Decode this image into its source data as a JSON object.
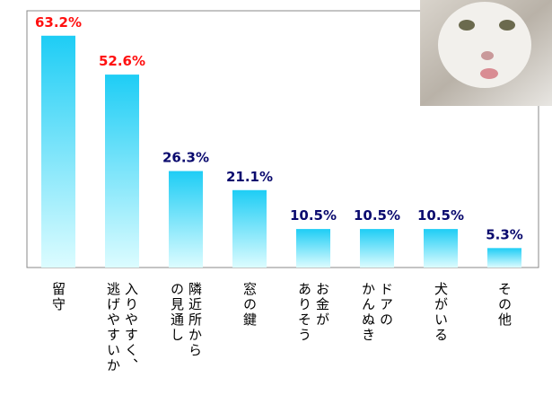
{
  "chart_data": {
    "type": "bar",
    "categories": [
      "留守",
      "入りやすく、\n逃げやすいか",
      "隣近所から\nの見通し",
      "窓の鍵",
      "お金が\nありそう",
      "ドアの\nかんぬき",
      "犬がいる",
      "その他"
    ],
    "values": [
      63.2,
      52.6,
      26.3,
      21.1,
      10.5,
      10.5,
      10.5,
      5.3
    ],
    "value_labels": [
      "63.2%",
      "52.6%",
      "26.3%",
      "21.1%",
      "10.5%",
      "10.5%",
      "10.5%",
      "5.3%"
    ],
    "value_label_colors": [
      "#ff1010",
      "#ff1010",
      "#0a0a6e",
      "#0a0a6e",
      "#0a0a6e",
      "#0a0a6e",
      "#0a0a6e",
      "#0a0a6e"
    ],
    "color": [
      "#1ecdf5",
      "#dcfcff"
    ],
    "ylim": [
      0,
      70
    ]
  }
}
